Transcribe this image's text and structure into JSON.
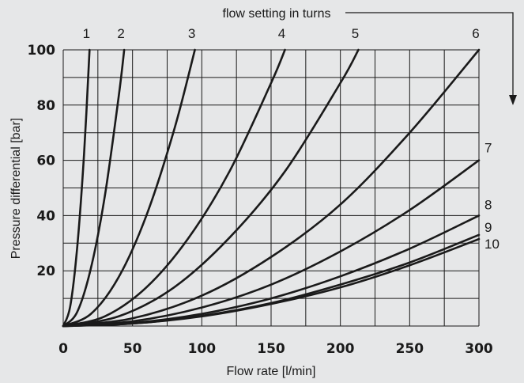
{
  "chart_data": {
    "type": "line",
    "title": "",
    "xlabel": "Flow rate [l/min]",
    "ylabel": "Pressure differential [bar]",
    "xlim": [
      0,
      300
    ],
    "ylim": [
      0,
      100
    ],
    "x_ticks": [
      "0",
      "50",
      "100",
      "150",
      "200",
      "250",
      "300"
    ],
    "y_ticks": [
      "20",
      "40",
      "60",
      "80",
      "100"
    ],
    "grid": true,
    "annotation": "flow setting in turns",
    "series": [
      {
        "name": "1",
        "x": [
          0,
          5,
          10,
          15,
          19
        ],
        "y": [
          0,
          7,
          28,
          62,
          100
        ]
      },
      {
        "name": "2",
        "x": [
          0,
          10,
          20,
          30,
          40,
          44
        ],
        "y": [
          0,
          5,
          21,
          47,
          83,
          100
        ]
      },
      {
        "name": "3",
        "x": [
          0,
          20,
          40,
          60,
          80,
          95
        ],
        "y": [
          0,
          4.4,
          17.7,
          40,
          71,
          100
        ]
      },
      {
        "name": "4",
        "x": [
          0,
          30,
          60,
          90,
          120,
          150,
          160
        ],
        "y": [
          0,
          3.5,
          14,
          31.6,
          56,
          88,
          100
        ]
      },
      {
        "name": "5",
        "x": [
          0,
          40,
          80,
          120,
          160,
          200,
          213
        ],
        "y": [
          0,
          3.5,
          14,
          32,
          56,
          88,
          100
        ]
      },
      {
        "name": "6",
        "x": [
          0,
          50,
          100,
          150,
          200,
          250,
          300
        ],
        "y": [
          0,
          2.8,
          11,
          25,
          44,
          70,
          100
        ]
      },
      {
        "name": "7",
        "x": [
          0,
          50,
          100,
          150,
          200,
          250,
          300
        ],
        "y": [
          0,
          1.7,
          6.7,
          15,
          27,
          42,
          60
        ]
      },
      {
        "name": "8",
        "x": [
          0,
          50,
          100,
          150,
          200,
          250,
          300
        ],
        "y": [
          0,
          1.1,
          4.4,
          10,
          18,
          28,
          40
        ]
      },
      {
        "name": "9",
        "x": [
          0,
          50,
          100,
          150,
          200,
          250,
          300
        ],
        "y": [
          0,
          0.9,
          3.7,
          8.3,
          15,
          23,
          33
        ]
      },
      {
        "name": "10",
        "x": [
          0,
          50,
          100,
          150,
          200,
          250,
          300
        ],
        "y": [
          0,
          0.9,
          3.5,
          8,
          14,
          22,
          31.5
        ]
      }
    ],
    "series_labels_top": [
      "1",
      "2",
      "3",
      "4",
      "5",
      "6"
    ],
    "series_labels_right": [
      "7",
      "8",
      "9",
      "10"
    ]
  }
}
